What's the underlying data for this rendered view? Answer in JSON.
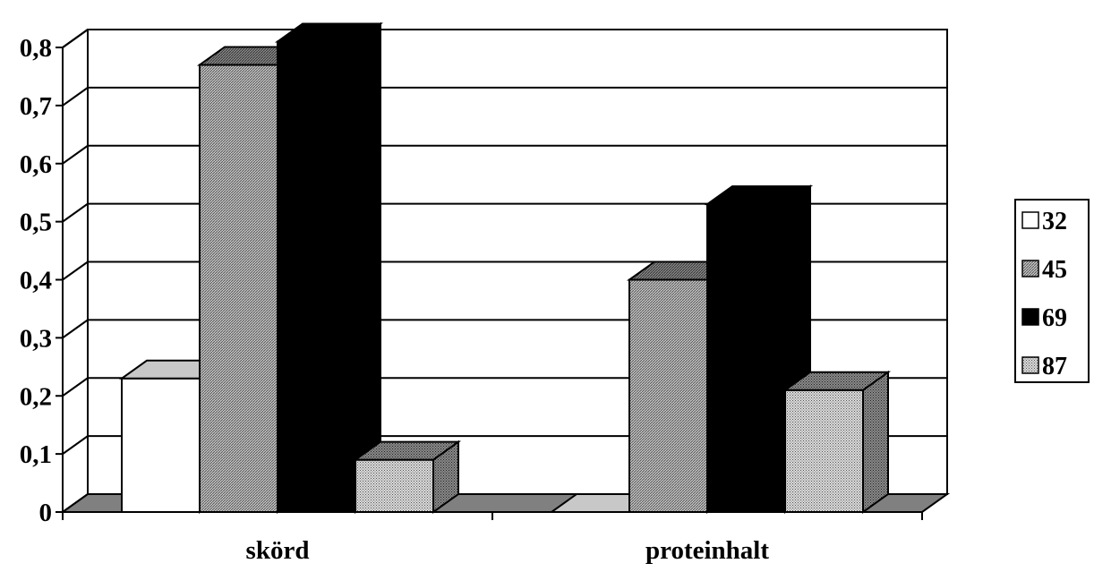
{
  "chart_data": {
    "type": "bar",
    "variant": "3d-clustered-column",
    "categories": [
      "skörd",
      "proteinhalt"
    ],
    "series": [
      {
        "name": "32",
        "values": [
          0.23,
          0.0
        ],
        "pattern": "white"
      },
      {
        "name": "45",
        "values": [
          0.77,
          0.4
        ],
        "pattern": "hatch"
      },
      {
        "name": "69",
        "values": [
          0.81,
          0.53
        ],
        "pattern": "black"
      },
      {
        "name": "87",
        "values": [
          0.09,
          0.21
        ],
        "pattern": "dots"
      }
    ],
    "ylim": [
      0,
      0.8
    ],
    "yticks": [
      "0",
      "0,1",
      "0,2",
      "0,3",
      "0,4",
      "0,5",
      "0,6",
      "0,7",
      "0,8"
    ],
    "grid": true,
    "legend_position": "right",
    "title": "",
    "xlabel": "",
    "ylabel": ""
  },
  "colors": {
    "background": "#ffffff",
    "grid": "#000000",
    "floor": "#808080"
  }
}
